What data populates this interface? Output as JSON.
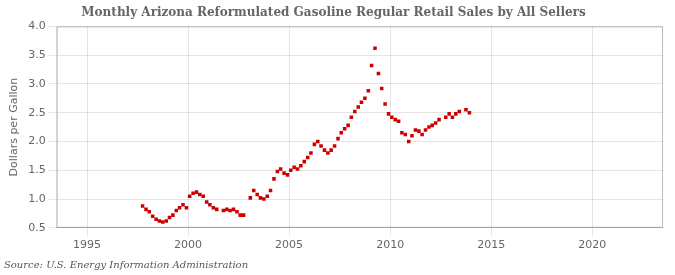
{
  "chart_data": {
    "type": "scatter",
    "title": "Monthly Arizona Reformulated Gasoline Regular Retail Sales by All Sellers",
    "ylabel": "Dollars per Gallon",
    "annotation": "Source: U.S. Energy Information Administration",
    "color": "#cc0000",
    "marker": "square",
    "grid": true,
    "xlim": [
      1993.5,
      2023.5
    ],
    "ylim": [
      0.5,
      4.0
    ],
    "xticks": [
      1995,
      2000,
      2005,
      2010,
      2015,
      2020
    ],
    "yticks": [
      0.5,
      {
        "value": 1.0,
        "label": "1.0"
      },
      1.5,
      {
        "value": 2.0,
        "label": "2.0"
      },
      2.5,
      {
        "value": 3.0,
        "label": "3.0"
      },
      3.5,
      {
        "value": 4.0,
        "label": "4.0"
      }
    ],
    "x": [
      1997.75,
      1997.92,
      1998.08,
      1998.25,
      1998.42,
      1998.58,
      1998.75,
      1998.92,
      1999.08,
      1999.25,
      1999.42,
      1999.58,
      1999.75,
      1999.92,
      2000.08,
      2000.25,
      2000.42,
      2000.58,
      2000.75,
      2000.92,
      2001.08,
      2001.25,
      2001.42,
      2001.75,
      2001.92,
      2002.08,
      2002.25,
      2002.42,
      2002.58,
      2002.75,
      2003.08,
      2003.25,
      2003.42,
      2003.58,
      2003.75,
      2003.92,
      2004.08,
      2004.25,
      2004.42,
      2004.58,
      2004.75,
      2004.92,
      2005.08,
      2005.25,
      2005.42,
      2005.58,
      2005.75,
      2005.92,
      2006.08,
      2006.25,
      2006.42,
      2006.58,
      2006.75,
      2006.92,
      2007.08,
      2007.25,
      2007.42,
      2007.58,
      2007.75,
      2007.92,
      2008.08,
      2008.25,
      2008.42,
      2008.58,
      2008.75,
      2008.92,
      2009.08,
      2009.25,
      2009.42,
      2009.58,
      2009.75,
      2009.92,
      2010.08,
      2010.25,
      2010.42,
      2010.58,
      2010.75,
      2010.92,
      2011.08,
      2011.25,
      2011.42,
      2011.58,
      2011.75,
      2011.92,
      2012.08,
      2012.25,
      2012.42,
      2012.75,
      2012.92,
      2013.08,
      2013.25,
      2013.42,
      2013.75,
      2013.92
    ],
    "values": [
      0.88,
      0.82,
      0.78,
      0.7,
      0.65,
      0.62,
      0.6,
      0.62,
      0.68,
      0.72,
      0.8,
      0.85,
      0.9,
      0.85,
      1.05,
      1.1,
      1.12,
      1.08,
      1.05,
      0.95,
      0.9,
      0.85,
      0.82,
      0.8,
      0.82,
      0.8,
      0.82,
      0.78,
      0.72,
      0.72,
      1.02,
      1.15,
      1.08,
      1.02,
      1.0,
      1.05,
      1.15,
      1.35,
      1.48,
      1.52,
      1.45,
      1.42,
      1.5,
      1.55,
      1.52,
      1.58,
      1.65,
      1.72,
      1.8,
      1.95,
      2.0,
      1.92,
      1.85,
      1.8,
      1.85,
      1.92,
      2.05,
      2.15,
      2.22,
      2.28,
      2.42,
      2.52,
      2.6,
      2.68,
      2.75,
      2.88,
      3.32,
      3.62,
      3.18,
      2.92,
      2.65,
      2.48,
      2.42,
      2.38,
      2.35,
      2.15,
      2.12,
      2.0,
      2.1,
      2.2,
      2.18,
      2.12,
      2.2,
      2.25,
      2.28,
      2.32,
      2.38,
      2.42,
      2.48,
      2.42,
      2.48,
      2.52,
      2.55,
      2.5
    ]
  }
}
